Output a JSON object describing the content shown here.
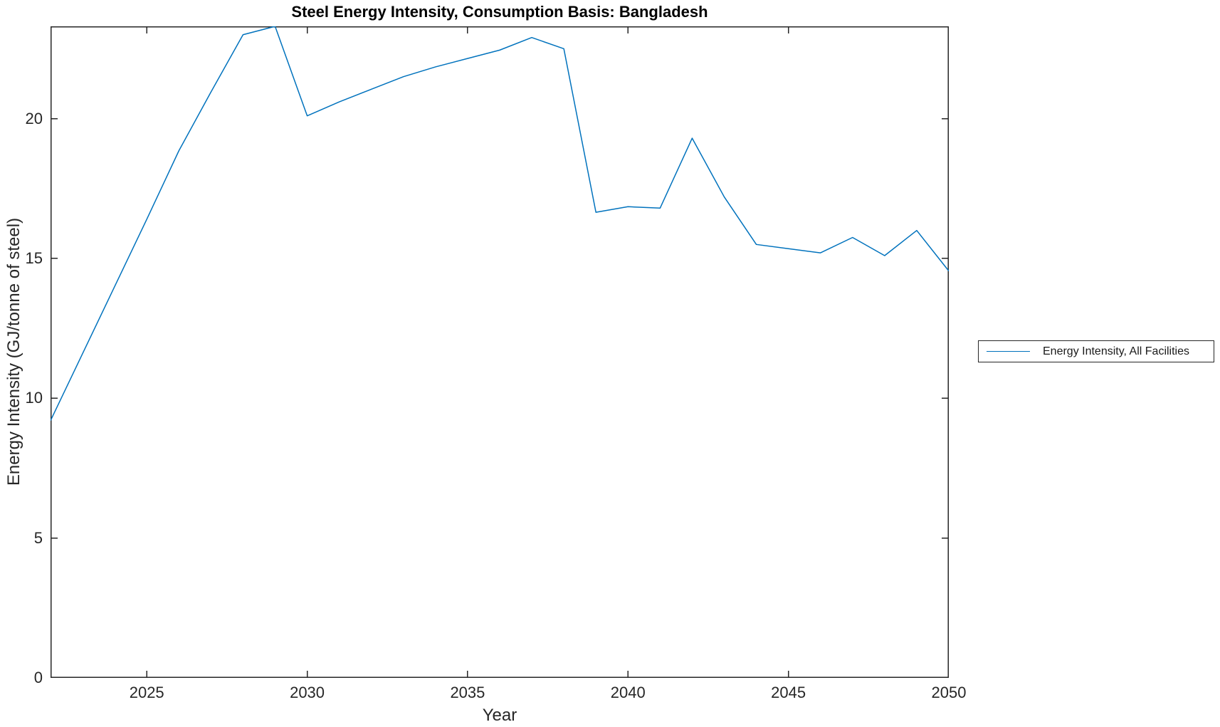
{
  "figure": {
    "background": "#ffffff",
    "axis_color": "#262626",
    "title_color": "#000000"
  },
  "chart_data": {
    "type": "line",
    "title": "Steel Energy Intensity, Consumption Basis: Bangladesh",
    "xlabel": "Year",
    "ylabel": "Energy Intensity (GJ/tonne of steel)",
    "x": [
      2022,
      2023,
      2024,
      2025,
      2026,
      2027,
      2028,
      2029,
      2030,
      2031,
      2032,
      2033,
      2034,
      2035,
      2036,
      2037,
      2038,
      2039,
      2040,
      2041,
      2042,
      2043,
      2044,
      2045,
      2046,
      2047,
      2048,
      2049,
      2050
    ],
    "series": [
      {
        "name": "Energy Intensity, All Facilities",
        "color": "#0072BD",
        "values": [
          9.2,
          11.6,
          14.0,
          16.4,
          18.85,
          20.95,
          23.0,
          23.3,
          20.1,
          20.6,
          21.05,
          21.5,
          21.85,
          22.15,
          22.45,
          22.9,
          22.5,
          16.65,
          16.85,
          16.8,
          19.3,
          17.2,
          15.5,
          15.35,
          15.2,
          15.75,
          15.1,
          16.0,
          14.55
        ]
      }
    ],
    "xlim": [
      2022,
      2050
    ],
    "ylim": [
      0,
      23.3
    ],
    "xticks": [
      2025,
      2030,
      2035,
      2040,
      2045,
      2050
    ],
    "yticks": [
      0,
      5,
      10,
      15,
      20
    ],
    "grid": false,
    "box": true,
    "tick_direction": "in",
    "legend_position": "right-outside"
  }
}
